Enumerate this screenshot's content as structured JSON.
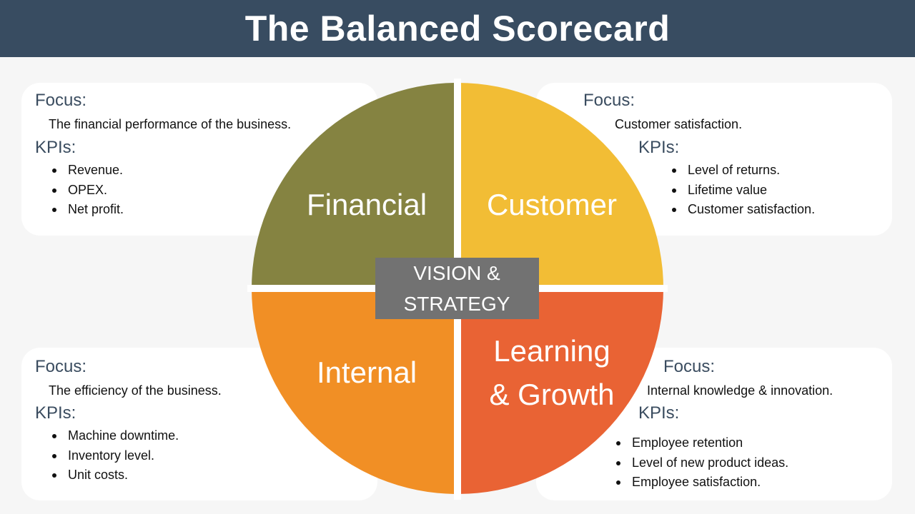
{
  "title": "The Balanced Scorecard",
  "colors": {
    "header": "#384c61",
    "financial": "#858341",
    "customer": "#f2bd35",
    "internal": "#f18f25",
    "learning": "#e96334",
    "center": "#727272",
    "heading_text": "#3a4c5f"
  },
  "center": {
    "line1": "VISION &",
    "line2": "STRATEGY"
  },
  "quadrants": {
    "financial": {
      "label": "Financial",
      "focus_heading": "Focus:",
      "focus": "The financial performance of the business.",
      "kpis_heading": "KPIs:",
      "kpis": [
        "Revenue.",
        "OPEX.",
        "Net profit."
      ]
    },
    "customer": {
      "label": "Customer",
      "focus_heading": "Focus:",
      "focus": "Customer satisfaction.",
      "kpis_heading": "KPIs:",
      "kpis": [
        "Level of returns.",
        "Lifetime value",
        "Customer satisfaction."
      ]
    },
    "internal": {
      "label": "Internal",
      "focus_heading": "Focus:",
      "focus": "The efficiency of the business.",
      "kpis_heading": "KPIs:",
      "kpis": [
        "Machine downtime.",
        "Inventory level.",
        "Unit costs."
      ]
    },
    "learning": {
      "label_line1": "Learning",
      "label_line2": "& Growth",
      "focus_heading": "Focus:",
      "focus": "Internal knowledge & innovation.",
      "kpis_heading": "KPIs:",
      "kpis": [
        "Employee retention",
        "Level of new product ideas.",
        "Employee satisfaction."
      ]
    }
  }
}
